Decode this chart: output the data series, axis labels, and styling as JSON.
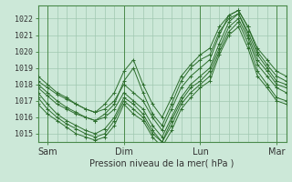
{
  "title": "",
  "xlabel": "Pression niveau de la mer( hPa )",
  "ylabel": "",
  "bg_color": "#cce8d8",
  "grid_color": "#a0c8b0",
  "line_color": "#2d6e2d",
  "xlim": [
    0,
    78
  ],
  "ylim": [
    1014.5,
    1022.8
  ],
  "yticks": [
    1015,
    1016,
    1017,
    1018,
    1019,
    1020,
    1021,
    1022
  ],
  "xtick_positions": [
    3,
    27,
    51,
    75
  ],
  "xtick_labels": [
    "Sam",
    "Dim",
    "Lun",
    "Mar"
  ],
  "vlines": [
    3,
    27,
    51,
    75
  ],
  "series": [
    [
      0,
      1018.2,
      3,
      1017.8,
      6,
      1017.4,
      9,
      1017.1,
      12,
      1016.8,
      15,
      1016.5,
      18,
      1016.3,
      21,
      1016.5,
      24,
      1017.0,
      27,
      1018.0,
      30,
      1017.5,
      33,
      1017.0,
      36,
      1016.0,
      39,
      1015.2,
      42,
      1016.5,
      45,
      1017.8,
      48,
      1018.5,
      51,
      1019.0,
      54,
      1019.5,
      57,
      1021.0,
      60,
      1022.2,
      63,
      1022.5,
      66,
      1021.5,
      69,
      1020.0,
      72,
      1019.2,
      75,
      1018.5,
      78,
      1018.2
    ],
    [
      0,
      1017.8,
      3,
      1017.3,
      6,
      1016.8,
      9,
      1016.5,
      12,
      1016.2,
      15,
      1016.0,
      18,
      1015.8,
      21,
      1016.0,
      24,
      1016.5,
      27,
      1017.5,
      30,
      1017.0,
      33,
      1016.5,
      36,
      1015.5,
      39,
      1014.8,
      42,
      1016.0,
      45,
      1017.2,
      48,
      1018.0,
      51,
      1018.5,
      54,
      1019.0,
      57,
      1020.5,
      60,
      1021.8,
      63,
      1022.3,
      66,
      1021.0,
      69,
      1019.5,
      72,
      1018.8,
      75,
      1018.0,
      78,
      1017.8
    ],
    [
      0,
      1017.5,
      3,
      1016.8,
      6,
      1016.2,
      9,
      1015.8,
      12,
      1015.5,
      15,
      1015.2,
      18,
      1015.0,
      21,
      1015.3,
      24,
      1016.0,
      27,
      1017.2,
      30,
      1016.8,
      33,
      1016.2,
      36,
      1015.2,
      39,
      1014.5,
      42,
      1015.8,
      45,
      1017.0,
      48,
      1017.8,
      51,
      1018.2,
      54,
      1018.8,
      57,
      1020.2,
      60,
      1021.5,
      63,
      1022.0,
      66,
      1020.8,
      69,
      1019.2,
      72,
      1018.5,
      75,
      1017.8,
      78,
      1017.5
    ],
    [
      0,
      1018.0,
      3,
      1017.5,
      6,
      1017.0,
      9,
      1016.6,
      12,
      1016.3,
      15,
      1016.0,
      18,
      1015.8,
      21,
      1016.2,
      24,
      1016.8,
      27,
      1018.2,
      30,
      1019.0,
      33,
      1017.5,
      36,
      1016.2,
      39,
      1015.5,
      42,
      1016.8,
      45,
      1018.2,
      48,
      1019.0,
      51,
      1019.5,
      54,
      1019.8,
      57,
      1021.2,
      60,
      1022.0,
      63,
      1022.3,
      66,
      1021.2,
      69,
      1019.8,
      72,
      1019.0,
      75,
      1018.2,
      78,
      1018.0
    ],
    [
      0,
      1017.2,
      3,
      1016.5,
      6,
      1016.0,
      9,
      1015.6,
      12,
      1015.3,
      15,
      1015.0,
      18,
      1014.8,
      21,
      1015.0,
      24,
      1015.8,
      27,
      1017.0,
      30,
      1016.5,
      33,
      1016.0,
      36,
      1015.0,
      39,
      1014.5,
      42,
      1015.5,
      45,
      1016.8,
      48,
      1017.5,
      51,
      1018.0,
      54,
      1018.5,
      57,
      1020.0,
      60,
      1021.2,
      63,
      1021.8,
      66,
      1020.5,
      69,
      1018.8,
      72,
      1018.0,
      75,
      1017.2,
      78,
      1017.0
    ],
    [
      0,
      1018.5,
      3,
      1018.0,
      6,
      1017.5,
      9,
      1017.2,
      12,
      1016.8,
      15,
      1016.5,
      18,
      1016.3,
      21,
      1016.8,
      24,
      1017.5,
      27,
      1018.8,
      30,
      1019.5,
      33,
      1018.0,
      36,
      1016.8,
      39,
      1016.0,
      42,
      1017.2,
      45,
      1018.5,
      48,
      1019.2,
      51,
      1019.8,
      54,
      1020.2,
      57,
      1021.5,
      60,
      1022.2,
      63,
      1022.5,
      66,
      1021.5,
      69,
      1020.2,
      72,
      1019.5,
      75,
      1018.8,
      78,
      1018.5
    ],
    [
      0,
      1016.8,
      3,
      1016.2,
      6,
      1015.8,
      9,
      1015.4,
      12,
      1015.0,
      15,
      1014.8,
      18,
      1014.6,
      21,
      1014.8,
      24,
      1015.5,
      27,
      1016.8,
      30,
      1016.2,
      33,
      1015.8,
      36,
      1014.8,
      39,
      1014.2,
      42,
      1015.2,
      45,
      1016.5,
      48,
      1017.2,
      51,
      1017.8,
      54,
      1018.2,
      57,
      1019.8,
      60,
      1021.0,
      63,
      1021.5,
      66,
      1020.2,
      69,
      1018.5,
      72,
      1017.8,
      75,
      1017.0,
      78,
      1016.8
    ]
  ]
}
